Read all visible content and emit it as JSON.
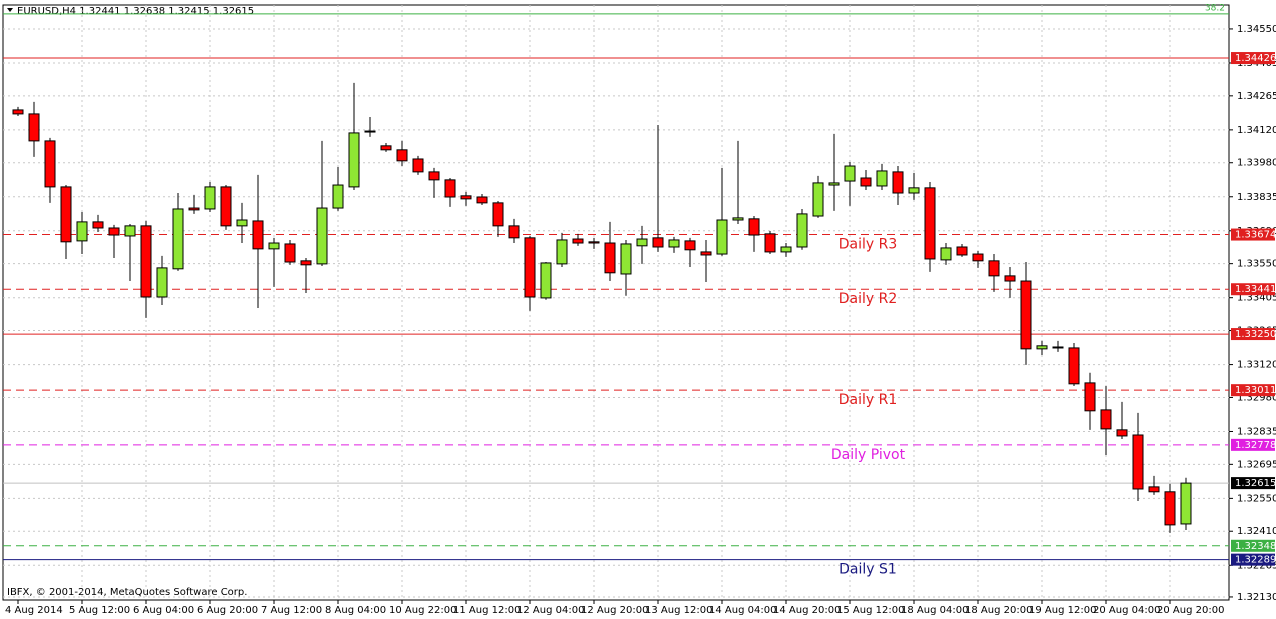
{
  "chart_data": {
    "type": "candlestick",
    "title": "EURUSD,H4  1.32441 1.32638 1.32415 1.32615",
    "copyright": "IBFX, © 2001-2014, MetaQuotes Software Corp.",
    "up_color": "#8fe634",
    "down_color": "#ff0000",
    "grid": true,
    "x": [
      "4 Aug 2014",
      null,
      null,
      null,
      "5 Aug 12:00",
      null,
      null,
      null,
      "6 Aug 04:00",
      null,
      null,
      null,
      "6 Aug 20:00",
      null,
      null,
      null,
      "7 Aug 12:00",
      null,
      null,
      null,
      "8 Aug 04:00",
      null,
      null,
      null,
      "10 Aug 22:00",
      null,
      null,
      null,
      "11 Aug 12:00",
      null,
      null,
      null,
      "12 Aug 04:00",
      null,
      null,
      null,
      "12 Aug 20:00",
      null,
      null,
      null,
      "13 Aug 12:00",
      null,
      null,
      null,
      "14 Aug 04:00",
      null,
      null,
      null,
      "14 Aug 20:00",
      null,
      null,
      null,
      "15 Aug 12:00",
      null,
      null,
      null,
      "18 Aug 04:00",
      null,
      null,
      null,
      "18 Aug 20:00",
      null,
      null,
      null,
      "19 Aug 12:00",
      null,
      null,
      null,
      "20 Aug 04:00",
      null,
      null,
      null,
      "20 Aug 20:00",
      null
    ],
    "open": [
      1.34205,
      1.34188,
      1.34073,
      1.33877,
      1.33647,
      1.33728,
      1.33702,
      1.33668,
      1.33711,
      1.33408,
      1.33528,
      1.33787,
      1.33783,
      1.33877,
      1.33711,
      1.33732,
      1.33613,
      1.33634,
      1.33562,
      1.33549,
      1.33787,
      1.33877,
      1.34111,
      1.34052,
      1.34035,
      1.33996,
      1.33941,
      1.33907,
      1.33839,
      1.33834,
      1.33809,
      1.33711,
      1.3366,
      1.33404,
      1.33549,
      1.33655,
      1.33643,
      1.33638,
      1.33506,
      1.33626,
      1.3366,
      1.33621,
      1.33647,
      1.336,
      1.33591,
      1.33736,
      1.33741,
      1.33677,
      1.336,
      1.33621,
      1.33753,
      1.33885,
      1.33902,
      1.33915,
      1.33881,
      1.33941,
      1.33851,
      1.33873,
      1.33566,
      1.33621,
      1.33591,
      1.33562,
      1.33498,
      1.33476,
      1.33187,
      1.33195,
      1.33191,
      1.33042,
      1.32927,
      1.32842,
      1.3282,
      1.32599,
      1.32578,
      1.32441
    ],
    "high": [
      1.34218,
      1.34239,
      1.34086,
      1.33885,
      1.3377,
      1.33758,
      1.33715,
      1.33719,
      1.33732,
      1.33583,
      1.33851,
      1.33843,
      1.33898,
      1.33885,
      1.33809,
      1.33928,
      1.3366,
      1.33651,
      1.33574,
      1.34073,
      1.33962,
      1.3432,
      1.34175,
      1.34064,
      1.34073,
      1.34009,
      1.33958,
      1.33915,
      1.33856,
      1.33847,
      1.33817,
      1.33741,
      1.33668,
      1.33557,
      1.33681,
      1.33677,
      1.3366,
      1.33728,
      1.33651,
      1.33711,
      1.34141,
      1.33664,
      1.3366,
      1.33651,
      1.33958,
      1.34073,
      1.33753,
      1.33689,
      1.33638,
      1.33783,
      1.33924,
      1.34103,
      1.33983,
      1.33949,
      1.33975,
      1.33966,
      1.33937,
      1.33898,
      1.33638,
      1.33634,
      1.33604,
      1.33591,
      1.33536,
      1.33557,
      1.33221,
      1.33221,
      1.33212,
      1.33085,
      1.33029,
      1.32961,
      1.32914,
      1.32646,
      1.32612,
      1.32638
    ],
    "low": [
      1.34179,
      1.34005,
      1.33809,
      1.3357,
      1.33591,
      1.33685,
      1.33574,
      1.33476,
      1.33319,
      1.33374,
      1.33519,
      1.33762,
      1.3377,
      1.33694,
      1.33638,
      1.33361,
      1.33451,
      1.33545,
      1.33425,
      1.3354,
      1.33775,
      1.33864,
      1.3409,
      1.34026,
      1.33966,
      1.33928,
      1.3383,
      1.33792,
      1.33796,
      1.338,
      1.33664,
      1.33638,
      1.33349,
      1.33396,
      1.33536,
      1.33626,
      1.33613,
      1.33476,
      1.33413,
      1.33549,
      1.336,
      1.33596,
      1.33536,
      1.33472,
      1.33583,
      1.33719,
      1.336,
      1.33591,
      1.33579,
      1.33609,
      1.33745,
      1.33775,
      1.33796,
      1.33864,
      1.33864,
      1.338,
      1.33822,
      1.33515,
      1.33545,
      1.33579,
      1.33532,
      1.3343,
      1.33404,
      1.33119,
      1.33161,
      1.33174,
      1.33029,
      1.32842,
      1.32735,
      1.32803,
      1.32539,
      1.32565,
      1.32403,
      1.32415
    ],
    "close": [
      1.34188,
      1.34073,
      1.33877,
      1.33643,
      1.33728,
      1.33702,
      1.33672,
      1.33711,
      1.33408,
      1.33532,
      1.33783,
      1.33779,
      1.33877,
      1.33711,
      1.33736,
      1.33613,
      1.33638,
      1.33557,
      1.33545,
      1.33787,
      1.33885,
      1.34107,
      1.34115,
      1.34035,
      1.33988,
      1.33941,
      1.33907,
      1.33834,
      1.33826,
      1.33809,
      1.33711,
      1.3366,
      1.33408,
      1.33553,
      1.33651,
      1.33638,
      1.33638,
      1.33511,
      1.33634,
      1.33655,
      1.33621,
      1.33651,
      1.33609,
      1.33587,
      1.33736,
      1.33745,
      1.33672,
      1.336,
      1.33621,
      1.33762,
      1.33894,
      1.33894,
      1.33966,
      1.33881,
      1.33945,
      1.33851,
      1.33873,
      1.3357,
      1.33617,
      1.33587,
      1.33562,
      1.33498,
      1.33476,
      1.33187,
      1.332,
      1.33195,
      1.33038,
      1.32923,
      1.32846,
      1.32816,
      1.3259,
      1.32578,
      1.32437,
      1.32615
    ],
    "ylim": [
      1.32117,
      1.34652
    ],
    "yticks": [
      {
        "value": 1.3455,
        "label": "1.34550"
      },
      1.34405,
      1.34265,
      {
        "value": 1.3412,
        "label": "1.34120"
      },
      {
        "value": 1.3398,
        "label": "1.33980"
      },
      1.33835,
      {
        "value": 1.3369,
        "label": "1.33690"
      },
      {
        "value": 1.3355,
        "label": "1.33550"
      },
      1.33405,
      1.33265,
      {
        "value": 1.3312,
        "label": "1.33120"
      },
      {
        "value": 1.3298,
        "label": "1.32980"
      },
      1.32835,
      1.32695,
      {
        "value": 1.3255,
        "label": "1.32550"
      },
      {
        "value": 1.3241,
        "label": "1.32410"
      },
      1.32265,
      {
        "value": 1.3213,
        "label": "1.32130"
      }
    ],
    "levels": [
      {
        "label": "38.2",
        "value": 1.34614,
        "color": "#3cb043",
        "dash": false
      },
      {
        "value": 1.34426,
        "color": "#e02020",
        "dash": false
      },
      {
        "name": "Daily R3",
        "value": 1.33674,
        "color": "#e02020",
        "dash": true
      },
      {
        "name": "Daily R2",
        "value": 1.33441,
        "color": "#e02020",
        "dash": true
      },
      {
        "value": 1.3325,
        "value_label": "1.33250",
        "color": "#e02020",
        "dash": false
      },
      {
        "name": "Daily R1",
        "value": 1.33011,
        "color": "#e02020",
        "dash": true
      },
      {
        "name": "Daily Pivot",
        "value": 1.32778,
        "color": "#e020e0",
        "dash": true
      },
      {
        "value": 1.32615,
        "color": "#000000",
        "line_color": "#c0c0c0",
        "dash": false
      },
      {
        "value": 1.32348,
        "color": "#3cb043",
        "dash": true
      },
      {
        "name": "Daily S1",
        "value": 1.32289,
        "color": "#1a1a80",
        "dash": false
      }
    ]
  }
}
